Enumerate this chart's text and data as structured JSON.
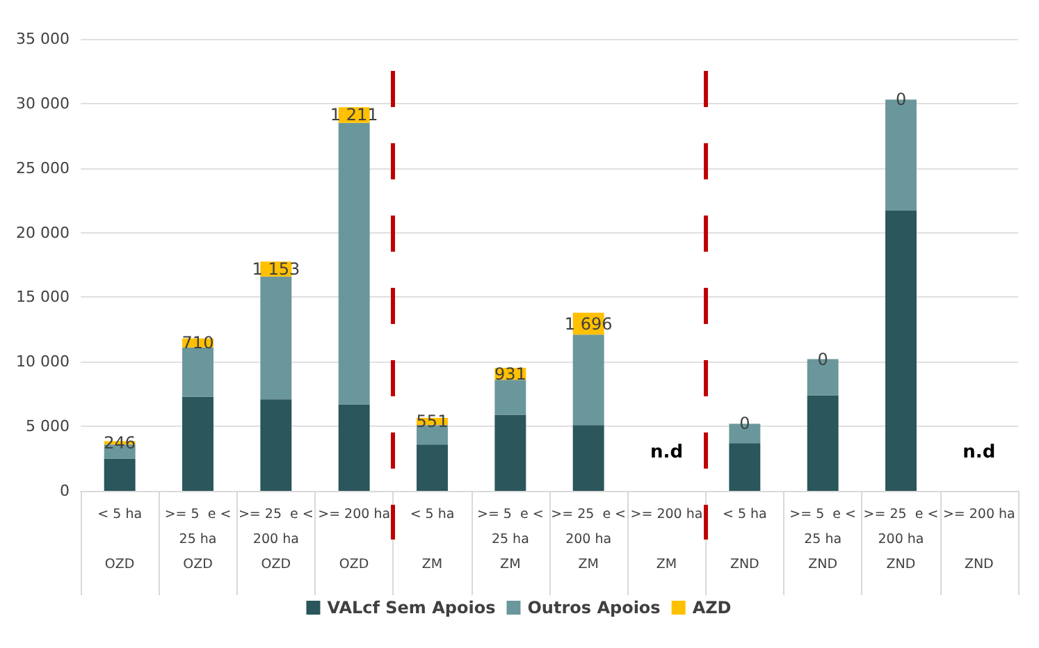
{
  "chart_data": {
    "type": "bar",
    "stacked": true,
    "categories": [
      "< 5 ha\n\nOZD",
      ">= 5  e <\n25 ha\nOZD",
      ">= 25  e <\n200 ha\nOZD",
      ">= 200 ha\n\nOZD",
      "< 5 ha\n\nZM",
      ">= 5  e <\n25 ha\nZM",
      ">= 25  e <\n200 ha\nZM",
      ">= 200 ha\n\nZM",
      "< 5 ha\n\nZND",
      ">= 5  e <\n25 ha\nZND",
      ">= 25  e <\n200 ha\nZND",
      ">= 200 ha\n\nZND"
    ],
    "series": [
      {
        "name": "VALcf Sem Apoios",
        "color": "#2a565c",
        "values": [
          2500,
          7300,
          7100,
          6700,
          3600,
          5900,
          5100,
          null,
          3700,
          7400,
          21700,
          null
        ]
      },
      {
        "name": "Outros Apoios",
        "color": "#6a979c",
        "values": [
          1100,
          3800,
          9500,
          21800,
          1500,
          2700,
          7000,
          null,
          1500,
          2800,
          8600,
          null
        ]
      },
      {
        "name": "AZD",
        "color": "#ffc000",
        "values": [
          246,
          710,
          1153,
          1211,
          551,
          931,
          1696,
          null,
          0,
          0,
          0,
          null
        ],
        "value_labels": [
          "246",
          "710",
          "1 153",
          "1 211",
          "551",
          "931",
          "1 696",
          null,
          "0",
          "0",
          "0",
          null
        ]
      }
    ],
    "ylim": [
      0,
      35000
    ],
    "yticks": [
      {
        "value": 0,
        "label": "0"
      },
      {
        "value": 5000,
        "label": "5 000"
      },
      {
        "value": 10000,
        "label": "10 000"
      },
      {
        "value": 15000,
        "label": "15 000"
      },
      {
        "value": 20000,
        "label": "20 000"
      },
      {
        "value": 25000,
        "label": "25 000"
      },
      {
        "value": 30000,
        "label": "30 000"
      },
      {
        "value": 35000,
        "label": "35 000"
      }
    ],
    "grid": "y",
    "legend": "bottom",
    "annotations": [
      "n.d",
      "n.d"
    ]
  }
}
